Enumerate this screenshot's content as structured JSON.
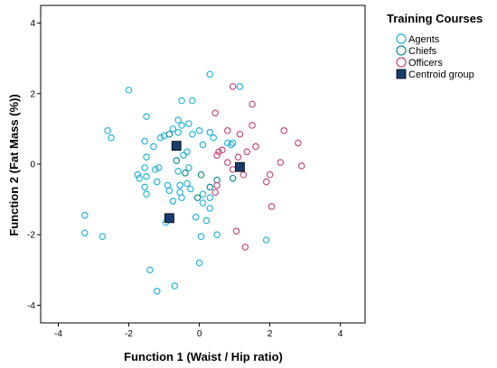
{
  "chart_data": {
    "type": "scatter",
    "xlabel": "Function 1 (Waist / Hip ratio)",
    "ylabel": "Function 2 (Fat Mass (%))",
    "xlim": [
      -4.5,
      4.7
    ],
    "ylim": [
      -4.5,
      4.5
    ],
    "xticks": [
      -4,
      -2,
      0,
      2,
      4
    ],
    "yticks": [
      -4,
      -2,
      0,
      2,
      4
    ],
    "grid": "horizontal",
    "legend": {
      "title": "Training Courses",
      "placement": "right",
      "entries": [
        "Agents",
        "Chiefs",
        "Officers",
        "Centroid group"
      ]
    },
    "series": [
      {
        "name": "Agents",
        "color": "#27b5dc",
        "marker": "open-circle",
        "points": [
          [
            -2.0,
            2.1
          ],
          [
            0.3,
            2.55
          ],
          [
            1.15,
            2.2
          ],
          [
            -0.5,
            1.8
          ],
          [
            -0.2,
            1.8
          ],
          [
            -1.5,
            1.35
          ],
          [
            -0.6,
            1.25
          ],
          [
            -0.3,
            1.15
          ],
          [
            -0.5,
            1.1
          ],
          [
            -0.75,
            1.0
          ],
          [
            0.0,
            0.95
          ],
          [
            -0.6,
            0.9
          ],
          [
            -0.2,
            0.85
          ],
          [
            -1.0,
            0.8
          ],
          [
            -1.1,
            0.75
          ],
          [
            -2.6,
            0.95
          ],
          [
            -2.5,
            0.75
          ],
          [
            0.3,
            0.9
          ],
          [
            0.4,
            0.75
          ],
          [
            0.8,
            0.6
          ],
          [
            0.95,
            0.6
          ],
          [
            0.9,
            0.55
          ],
          [
            -1.55,
            0.65
          ],
          [
            -1.3,
            0.5
          ],
          [
            -1.5,
            0.2
          ],
          [
            -1.55,
            -0.1
          ],
          [
            -1.25,
            -0.15
          ],
          [
            -1.15,
            -0.1
          ],
          [
            0.1,
            0.55
          ],
          [
            -0.35,
            0.35
          ],
          [
            -0.45,
            0.25
          ],
          [
            -0.6,
            -0.2
          ],
          [
            -0.3,
            -0.1
          ],
          [
            -1.5,
            -0.35
          ],
          [
            -1.75,
            -0.3
          ],
          [
            -1.7,
            -0.4
          ],
          [
            -1.2,
            -0.5
          ],
          [
            -1.55,
            -0.65
          ],
          [
            -1.5,
            -0.85
          ],
          [
            -0.9,
            -0.6
          ],
          [
            -0.85,
            -0.75
          ],
          [
            -0.55,
            -0.6
          ],
          [
            -0.35,
            -0.55
          ],
          [
            -0.55,
            -0.8
          ],
          [
            -0.25,
            -0.7
          ],
          [
            0.1,
            -0.85
          ],
          [
            0.3,
            -0.95
          ],
          [
            0.1,
            -1.1
          ],
          [
            0.3,
            -1.25
          ],
          [
            -0.75,
            -1.05
          ],
          [
            -0.5,
            -0.95
          ],
          [
            -0.1,
            -1.5
          ],
          [
            0.2,
            -1.6
          ],
          [
            -0.95,
            -1.65
          ],
          [
            -3.25,
            -1.45
          ],
          [
            -3.25,
            -1.95
          ],
          [
            -2.75,
            -2.05
          ],
          [
            0.05,
            -2.05
          ],
          [
            0.5,
            -2.0
          ],
          [
            1.9,
            -2.15
          ],
          [
            0.0,
            -2.8
          ],
          [
            -1.4,
            -3.0
          ],
          [
            -0.7,
            -3.45
          ],
          [
            -1.2,
            -3.6
          ]
        ]
      },
      {
        "name": "Chiefs",
        "color": "#1a8c94",
        "marker": "open-circle",
        "points": [
          [
            -0.85,
            0.85
          ],
          [
            -0.65,
            0.1
          ],
          [
            -0.4,
            -0.25
          ],
          [
            0.05,
            -0.3
          ],
          [
            -0.05,
            -0.95
          ],
          [
            0.5,
            -0.45
          ],
          [
            0.95,
            -0.4
          ],
          [
            0.3,
            -0.65
          ]
        ]
      },
      {
        "name": "Officers",
        "color": "#c54d7f",
        "marker": "open-circle",
        "points": [
          [
            0.95,
            2.2
          ],
          [
            0.45,
            1.45
          ],
          [
            1.5,
            1.7
          ],
          [
            1.5,
            1.1
          ],
          [
            0.8,
            0.95
          ],
          [
            1.15,
            0.85
          ],
          [
            2.4,
            0.95
          ],
          [
            2.8,
            0.6
          ],
          [
            1.6,
            0.5
          ],
          [
            0.65,
            0.4
          ],
          [
            0.55,
            0.35
          ],
          [
            0.5,
            0.25
          ],
          [
            1.35,
            0.35
          ],
          [
            1.1,
            0.2
          ],
          [
            0.8,
            0.05
          ],
          [
            2.3,
            0.05
          ],
          [
            2.9,
            -0.05
          ],
          [
            0.95,
            -0.15
          ],
          [
            1.25,
            -0.3
          ],
          [
            2.0,
            -0.3
          ],
          [
            1.9,
            -0.5
          ],
          [
            0.5,
            -0.6
          ],
          [
            0.45,
            -0.8
          ],
          [
            2.05,
            -1.2
          ],
          [
            1.05,
            -1.9
          ],
          [
            1.3,
            -2.35
          ]
        ]
      },
      {
        "name": "Centroid group",
        "color": "#173c70",
        "marker": "filled-square",
        "points": [
          [
            -0.65,
            0.52
          ],
          [
            1.15,
            -0.08
          ],
          [
            -0.85,
            -1.53
          ]
        ]
      }
    ]
  }
}
